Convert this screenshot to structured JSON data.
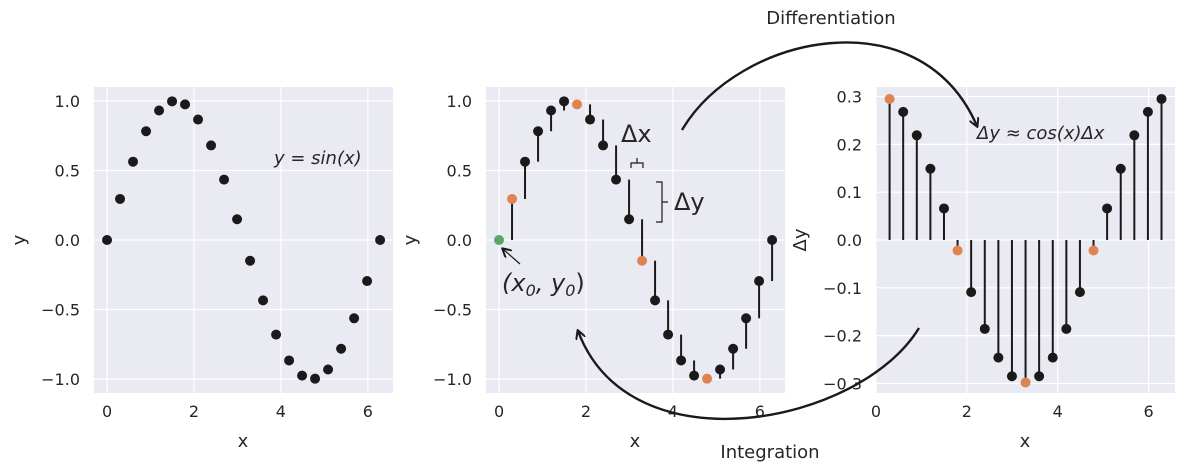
{
  "colors": {
    "background": "#eaeaf2",
    "grid": "#ffffff",
    "point": "#1a1a1a",
    "highlight": "#dd8452",
    "start_point": "#55a868",
    "text": "#262626"
  },
  "chart_data": [
    {
      "type": "scatter",
      "xlabel": "x",
      "ylabel": "y",
      "xlim": [
        -0.3,
        6.58
      ],
      "ylim": [
        -1.1,
        1.1
      ],
      "xticks": [
        0,
        2,
        4,
        6
      ],
      "xtick_labels": [
        "0",
        "2",
        "4",
        "6"
      ],
      "yticks": [
        1.0,
        0.5,
        0.0,
        -0.5,
        -1.0
      ],
      "ytick_labels": [
        "1.0",
        "0.5",
        "0.0",
        "−0.5",
        "−1.0"
      ],
      "grid": true,
      "annotation": "y = sin(x)",
      "x": [
        0.0,
        0.299,
        0.598,
        0.898,
        1.197,
        1.496,
        1.795,
        2.094,
        2.394,
        2.693,
        2.992,
        3.291,
        3.59,
        3.89,
        4.189,
        4.488,
        4.787,
        5.086,
        5.386,
        5.685,
        5.984,
        6.283
      ],
      "y": [
        0.0,
        0.295,
        0.563,
        0.782,
        0.931,
        0.997,
        0.975,
        0.866,
        0.68,
        0.434,
        0.149,
        -0.149,
        -0.434,
        -0.68,
        -0.866,
        -0.975,
        -0.997,
        -0.931,
        -0.782,
        -0.563,
        -0.295,
        0.0
      ]
    },
    {
      "type": "scatter",
      "xlabel": "x",
      "ylabel": "y",
      "xlim": [
        -0.3,
        6.58
      ],
      "ylim": [
        -1.1,
        1.1
      ],
      "xticks": [
        0,
        2,
        4,
        6
      ],
      "xtick_labels": [
        "0",
        "2",
        "4",
        "6"
      ],
      "yticks": [
        1.0,
        0.5,
        0.0,
        -0.5,
        -1.0
      ],
      "ytick_labels": [
        "1.0",
        "0.5",
        "0.0",
        "−0.5",
        "−1.0"
      ],
      "grid": true,
      "x": [
        0.0,
        0.299,
        0.598,
        0.898,
        1.197,
        1.496,
        1.795,
        2.094,
        2.394,
        2.693,
        2.992,
        3.291,
        3.59,
        3.89,
        4.189,
        4.488,
        4.787,
        5.086,
        5.386,
        5.685,
        5.984,
        6.283
      ],
      "y": [
        0.0,
        0.295,
        0.563,
        0.782,
        0.931,
        0.997,
        0.975,
        0.866,
        0.68,
        0.434,
        0.149,
        -0.149,
        -0.434,
        -0.68,
        -0.866,
        -0.975,
        -0.997,
        -0.931,
        -0.782,
        -0.563,
        -0.295,
        0.0
      ],
      "highlighted_indices": [
        1,
        6,
        11,
        16
      ],
      "start_index": 0,
      "stems": "vertical segment at each point from previous y to current y",
      "annotations": {
        "dx": "Δx",
        "dy": "Δy",
        "start": "(x0, y0)",
        "start_main": "(x",
        "start_sub0": "0",
        "start_mid": ", y",
        "start_sub1": "0",
        "start_close": ")"
      }
    },
    {
      "type": "bar",
      "xlabel": "x",
      "ylabel": "Δy",
      "xlim": [
        0.0,
        6.58
      ],
      "ylim": [
        -0.32,
        0.32
      ],
      "xticks": [
        0,
        2,
        4,
        6
      ],
      "xtick_labels": [
        "0",
        "2",
        "4",
        "6"
      ],
      "yticks": [
        0.3,
        0.2,
        0.1,
        0.0,
        -0.1,
        -0.2,
        -0.3
      ],
      "ytick_labels": [
        "0.3",
        "0.2",
        "0.1",
        "0.0",
        "−0.1",
        "−0.2",
        "−0.3"
      ],
      "grid": true,
      "annotation": "Δy ≈ cos(x)Δx",
      "x": [
        0.299,
        0.598,
        0.898,
        1.197,
        1.496,
        1.795,
        2.094,
        2.394,
        2.693,
        2.992,
        3.291,
        3.59,
        3.89,
        4.189,
        4.488,
        4.787,
        5.086,
        5.386,
        5.685,
        5.984,
        6.283
      ],
      "values": [
        0.295,
        0.268,
        0.219,
        0.149,
        0.066,
        -0.022,
        -0.109,
        -0.186,
        -0.246,
        -0.285,
        -0.298,
        -0.285,
        -0.246,
        -0.186,
        -0.109,
        -0.022,
        0.066,
        0.149,
        0.219,
        0.268,
        0.295
      ],
      "highlighted_indices": [
        0,
        5,
        10,
        15
      ]
    }
  ],
  "labels": {
    "differentiation": "Differentiation",
    "integration": "Integration"
  }
}
